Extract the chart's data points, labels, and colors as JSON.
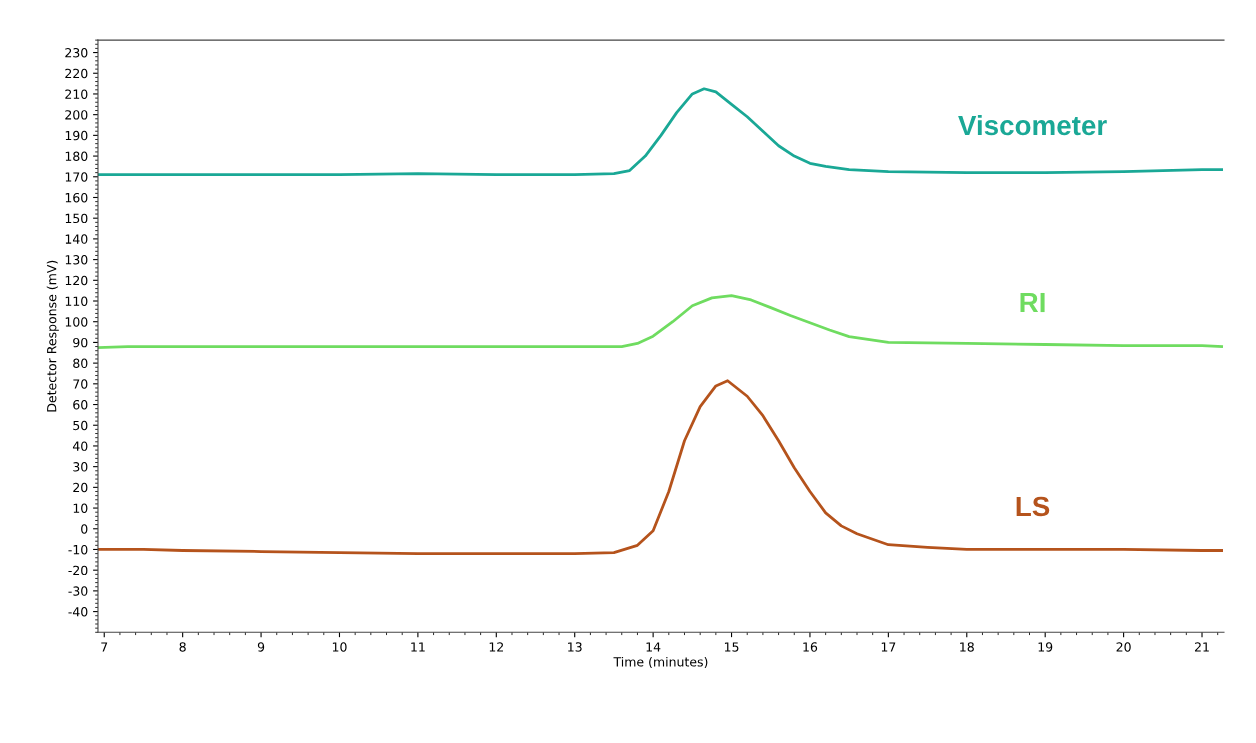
{
  "chart_data": {
    "type": "line",
    "xlabel": "Time (minutes)",
    "ylabel": "Detector Response (mV)",
    "xlim": [
      6.92,
      21.28
    ],
    "xticks": [
      7,
      8,
      9,
      10,
      11,
      12,
      13,
      14,
      15,
      16,
      17,
      18,
      19,
      20,
      21
    ],
    "ylim": [
      -50,
      236
    ],
    "yticks": [
      -40,
      -30,
      -20,
      -10,
      0,
      10,
      20,
      30,
      40,
      50,
      60,
      70,
      80,
      90,
      100,
      110,
      120,
      130,
      140,
      150,
      160,
      170,
      180,
      190,
      200,
      210,
      220,
      230
    ],
    "grid": false,
    "legend": false,
    "series": [
      {
        "name": "Viscometer",
        "color": "#1aa896",
        "x": [
          6.92,
          7.5,
          8,
          9,
          10,
          11,
          12,
          13,
          13.5,
          13.7,
          13.9,
          14.1,
          14.3,
          14.5,
          14.65,
          14.8,
          15,
          15.2,
          15.4,
          15.6,
          15.8,
          16,
          16.2,
          16.5,
          17,
          18,
          19,
          20,
          20.5,
          21,
          21.25
        ],
        "values": [
          171,
          171,
          171,
          171,
          171,
          171.5,
          171,
          171,
          171.5,
          173,
          180,
          190,
          201,
          210,
          212.5,
          211,
          205,
          199,
          192,
          185,
          180,
          176.5,
          175,
          173.5,
          172.5,
          172,
          172,
          172.5,
          173,
          173.5,
          173.5
        ]
      },
      {
        "name": "RI",
        "color": "#6fdc60",
        "x": [
          6.92,
          7.3,
          8,
          9,
          10,
          11,
          12,
          13,
          13.6,
          13.8,
          14,
          14.25,
          14.5,
          14.75,
          15,
          15.25,
          15.5,
          15.75,
          16,
          16.25,
          16.5,
          17,
          18,
          19,
          20,
          21,
          21.25
        ],
        "values": [
          87.5,
          88,
          88,
          88,
          88,
          88,
          88,
          88,
          88,
          89.5,
          93,
          100,
          107.7,
          111.5,
          112.6,
          110.5,
          106.8,
          103,
          99.5,
          96,
          92.8,
          90,
          89.5,
          89,
          88.5,
          88.5,
          88
        ]
      },
      {
        "name": "LS",
        "color": "#b5531c",
        "x": [
          6.92,
          7.5,
          8,
          9,
          10,
          11,
          12,
          12.5,
          13,
          13.5,
          13.8,
          14,
          14.2,
          14.4,
          14.6,
          14.8,
          14.95,
          15.2,
          15.4,
          15.6,
          15.8,
          16,
          16.2,
          16.4,
          16.6,
          17,
          17.5,
          18,
          19,
          20,
          21,
          21.25
        ],
        "values": [
          -10,
          -10,
          -10.5,
          -11,
          -11.5,
          -12,
          -12,
          -12,
          -12,
          -11.5,
          -8,
          -1,
          18,
          42.5,
          59,
          69,
          71.5,
          64,
          54.6,
          42.5,
          29.5,
          18,
          7.7,
          1.4,
          -2.4,
          -7.7,
          -9,
          -10,
          -10,
          -10,
          -10.5,
          -10.5
        ]
      }
    ]
  }
}
